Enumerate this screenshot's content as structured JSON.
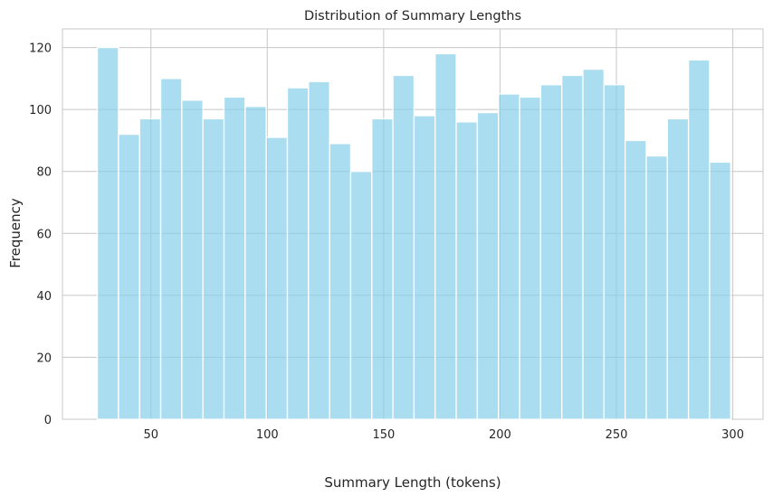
{
  "chart_data": {
    "type": "bar",
    "subtype": "histogram",
    "title": "Distribution of Summary Lengths",
    "xlabel": "Summary Length (tokens)",
    "ylabel": "Frequency",
    "bin_start": 27,
    "bin_width": 9.07,
    "values": [
      120,
      92,
      97,
      110,
      103,
      97,
      104,
      101,
      91,
      107,
      109,
      89,
      80,
      97,
      111,
      98,
      118,
      96,
      99,
      105,
      104,
      108,
      111,
      113,
      108,
      90,
      85,
      97,
      116,
      83
    ],
    "xlim": [
      12,
      313
    ],
    "ylim": [
      0,
      126
    ],
    "xticks": [
      50,
      100,
      150,
      200,
      250,
      300
    ],
    "yticks": [
      0,
      20,
      40,
      60,
      80,
      100,
      120
    ],
    "grid": true,
    "bar_color": "#87ceeb",
    "bar_alpha": 0.7,
    "bar_edge_color": "#ffffff",
    "grid_color": "#cccccc",
    "axes_edge_color": "#cccccc",
    "legend": false
  }
}
